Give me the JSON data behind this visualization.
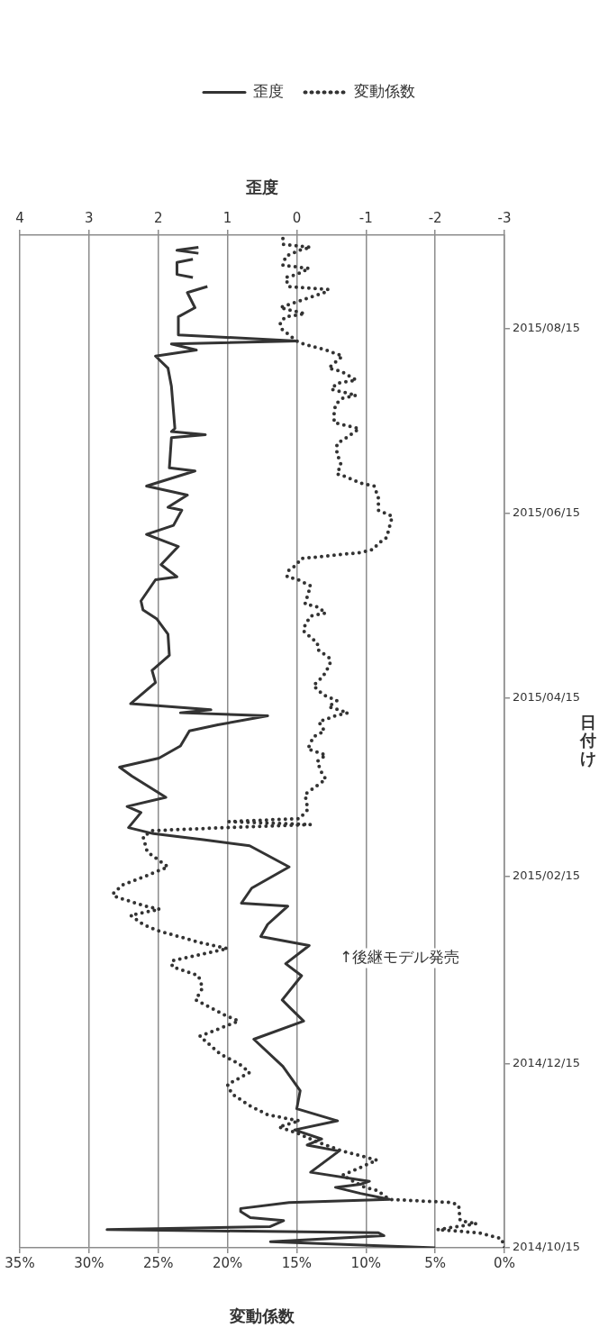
{
  "chart_data": {
    "type": "line",
    "orientation": "horizontal",
    "ylabel": "日付け",
    "xlabel": "変動係数",
    "x2label": "歪度",
    "legend": "top",
    "grid": "x",
    "ylim": [
      "2014-10-15",
      "2015-09-15"
    ],
    "yticks": [
      {
        "value": "2014-10-15",
        "label": "2014/10/15"
      },
      {
        "value": "2014-12-15",
        "label": "2014/12/15"
      },
      {
        "value": "2015-02-15",
        "label": "2015/02/15"
      },
      {
        "value": "2015-04-15",
        "label": "2015/04/15"
      },
      {
        "value": "2015-06-15",
        "label": "2015/06/15"
      },
      {
        "value": "2015-08-15",
        "label": "2015/08/15"
      }
    ],
    "xlim": [
      35,
      0
    ],
    "xticks": [
      {
        "value": 0,
        "label": "0%"
      },
      {
        "value": 5,
        "label": "5%"
      },
      {
        "value": 10,
        "label": "10%"
      },
      {
        "value": 15,
        "label": "15%"
      },
      {
        "value": 20,
        "label": "20%"
      },
      {
        "value": 25,
        "label": "25%"
      },
      {
        "value": 30,
        "label": "30%"
      },
      {
        "value": 35,
        "label": "35%"
      }
    ],
    "x2lim": [
      4,
      -3
    ],
    "x2ticks": [
      -3,
      -2,
      -1,
      0,
      1,
      2,
      3,
      4
    ],
    "annotations": [
      "↑後継モデル発売"
    ],
    "series": [
      {
        "name": "歪度",
        "axis": "x2",
        "color": "#333333",
        "line_style": "solid",
        "x": [
          "2014-10-15",
          "2014-10-17",
          "2014-10-19",
          "2014-10-20",
          "2014-10-21",
          "2014-10-22",
          "2014-10-24",
          "2014-10-25",
          "2014-10-27",
          "2014-10-28",
          "2014-10-30",
          "2014-10-31",
          "2014-11-02",
          "2014-11-04",
          "2014-11-05",
          "2014-11-06",
          "2014-11-09",
          "2014-11-16",
          "2014-11-18",
          "2014-11-20",
          "2014-11-23",
          "2014-11-26",
          "2014-11-30",
          "2014-12-06",
          "2014-12-14",
          "2014-12-23",
          "2014-12-29",
          "2015-01-02",
          "2015-01-05",
          "2015-01-13",
          "2015-01-17",
          "2015-01-23",
          "2015-01-26",
          "2015-01-30",
          "2015-02-05",
          "2015-02-06",
          "2015-02-11",
          "2015-02-18",
          "2015-02-25",
          "2015-02-27",
          "2015-03-01",
          "2015-03-03",
          "2015-03-08",
          "2015-03-10",
          "2015-03-13",
          "2015-03-20",
          "2015-03-23",
          "2015-03-26",
          "2015-03-30",
          "2015-04-04",
          "2015-04-06",
          "2015-04-09",
          "2015-04-10",
          "2015-04-11",
          "2015-04-13",
          "2015-04-20",
          "2015-04-24",
          "2015-04-29",
          "2015-05-06",
          "2015-05-11",
          "2015-05-14",
          "2015-05-17",
          "2015-05-24",
          "2015-05-25",
          "2015-05-29",
          "2015-06-04",
          "2015-06-08",
          "2015-06-11",
          "2015-06-16",
          "2015-06-17",
          "2015-06-21",
          "2015-06-24",
          "2015-06-29",
          "2015-06-30",
          "2015-07-10",
          "2015-07-11",
          "2015-07-12",
          "2015-07-13",
          "2015-07-27",
          "2015-08-02",
          "2015-08-06",
          "2015-08-08",
          "2015-08-10",
          "2015-08-11",
          "2015-08-13",
          "2015-08-19",
          "2015-08-22",
          "2015-08-27",
          "2015-08-29",
          "2015-08-30",
          "2015-09-01",
          "2015-09-02",
          "2015-09-06",
          "2015-09-07",
          "2015-09-08",
          "2015-09-09",
          "2015-09-10",
          "2015-09-11"
        ],
        "values": [
          -2.0,
          0.38,
          -1.26,
          -1.18,
          2.74,
          0.39,
          0.19,
          0.67,
          0.81,
          0.81,
          0.11,
          -1.34,
          -0.92,
          -0.56,
          -0.92,
          -1.05,
          -0.2,
          -0.61,
          -0.15,
          -0.36,
          0.03,
          -0.59,
          0.0,
          -0.05,
          0.2,
          0.62,
          -0.1,
          0.08,
          0.21,
          -0.07,
          0.16,
          -0.18,
          0.52,
          0.42,
          0.13,
          0.8,
          0.65,
          0.11,
          0.68,
          1.35,
          2.07,
          2.43,
          2.25,
          2.45,
          1.89,
          2.38,
          2.56,
          1.99,
          1.68,
          1.55,
          1.14,
          0.42,
          1.68,
          1.24,
          2.4,
          2.04,
          2.09,
          1.84,
          1.86,
          2.02,
          2.22,
          2.25,
          2.04,
          1.73,
          1.96,
          1.71,
          2.17,
          1.78,
          1.66,
          1.86,
          1.58,
          2.17,
          1.47,
          1.84,
          1.81,
          1.32,
          1.81,
          1.76,
          1.81,
          1.86,
          2.04,
          1.45,
          1.81,
          0.0,
          1.71,
          1.71,
          1.47,
          1.58,
          1.29,
          null,
          1.5,
          1.73,
          1.73,
          1.5,
          null,
          1.42,
          1.73,
          1.42
        ]
      },
      {
        "name": "変動係数",
        "color": "#333333",
        "line_style": "dotted",
        "x": [
          "2014-10-15",
          "2014-10-18",
          "2014-10-20",
          "2014-10-21",
          "2014-10-23",
          "2014-10-24",
          "2014-10-29",
          "2014-10-30",
          "2014-10-31",
          "2014-11-03",
          "2014-11-04",
          "2014-11-08",
          "2014-11-13",
          "2014-11-16",
          "2014-11-19",
          "2014-11-22",
          "2014-11-24",
          "2014-11-26",
          "2014-11-28",
          "2014-12-01",
          "2014-12-05",
          "2014-12-08",
          "2014-12-12",
          "2014-12-15",
          "2014-12-18",
          "2014-12-24",
          "2014-12-29",
          "2014-12-31",
          "2015-01-05",
          "2015-01-09",
          "2015-01-13",
          "2015-01-16",
          "2015-01-18",
          "2015-01-22",
          "2015-01-24",
          "2015-01-28",
          "2015-01-30",
          "2015-02-02",
          "2015-02-04",
          "2015-02-05",
          "2015-02-08",
          "2015-02-09",
          "2015-02-12",
          "2015-02-15",
          "2015-02-18",
          "2015-02-21",
          "2015-02-23",
          "2015-02-28",
          "2015-03-02",
          "2015-03-03",
          "2015-03-04",
          "2015-03-05",
          "2015-03-06",
          "2015-03-09",
          "2015-03-14",
          "2015-03-16",
          "2015-03-19",
          "2015-03-22",
          "2015-03-25",
          "2015-03-27",
          "2015-03-29",
          "2015-04-02",
          "2015-04-04",
          "2015-04-07",
          "2015-04-09",
          "2015-04-10",
          "2015-04-12",
          "2015-04-14",
          "2015-04-16",
          "2015-04-19",
          "2015-04-22",
          "2015-04-26",
          "2015-04-28",
          "2015-05-01",
          "2015-05-03",
          "2015-05-07",
          "2015-05-09",
          "2015-05-12",
          "2015-05-13",
          "2015-05-15",
          "2015-05-16",
          "2015-05-22",
          "2015-05-24",
          "2015-05-25",
          "2015-05-27",
          "2015-05-29",
          "2015-05-31",
          "2015-06-02",
          "2015-06-03",
          "2015-06-05",
          "2015-06-07",
          "2015-06-14",
          "2015-06-15",
          "2015-06-16",
          "2015-06-20",
          "2015-06-24",
          "2015-06-25",
          "2015-06-27",
          "2015-06-28",
          "2015-07-01",
          "2015-07-05",
          "2015-07-08",
          "2015-07-10",
          "2015-07-13",
          "2015-07-14",
          "2015-07-15",
          "2015-07-18",
          "2015-07-21",
          "2015-07-23",
          "2015-07-24",
          "2015-07-26",
          "2015-07-28",
          "2015-07-29",
          "2015-08-01",
          "2015-08-02",
          "2015-08-06",
          "2015-08-08",
          "2015-08-10",
          "2015-08-11",
          "2015-08-15",
          "2015-08-17",
          "2015-08-19",
          "2015-08-20",
          "2015-08-22",
          "2015-08-23",
          "2015-08-25",
          "2015-08-27",
          "2015-08-28",
          "2015-08-29",
          "2015-09-01",
          "2015-09-02",
          "2015-09-04",
          "2015-09-05",
          "2015-09-08",
          "2015-09-10",
          "2015-09-11",
          "2015-09-12",
          "2015-09-14"
        ],
        "values": [
          0.0,
          0.2,
          1.9,
          4.85,
          2.0,
          3.2,
          3.3,
          3.8,
          8.3,
          9.2,
          10.1,
          11.7,
          9.2,
          11.7,
          13.5,
          15.0,
          16.3,
          14.8,
          17.1,
          18.4,
          19.7,
          20.0,
          18.4,
          19.2,
          20.5,
          22.0,
          19.2,
          20.2,
          22.3,
          21.8,
          22.1,
          24.0,
          24.0,
          20.0,
          22.0,
          25.1,
          26.1,
          27.0,
          24.9,
          25.9,
          28.0,
          28.3,
          27.6,
          25.9,
          24.3,
          25.2,
          25.8,
          26.1,
          25.4,
          20.2,
          14.0,
          19.9,
          14.8,
          14.2,
          14.4,
          13.8,
          12.9,
          13.3,
          13.5,
          12.9,
          14.2,
          13.8,
          13.0,
          13.4,
          12.2,
          11.3,
          12.7,
          12.1,
          13.1,
          13.8,
          13.1,
          12.6,
          12.6,
          13.5,
          13.5,
          14.5,
          14.4,
          14.0,
          12.9,
          13.5,
          14.4,
          14.0,
          14.9,
          15.7,
          15.6,
          15.0,
          14.7,
          10.4,
          9.5,
          9.1,
          8.5,
          8.1,
          8.6,
          9.1,
          9.1,
          9.4,
          10.4,
          11.4,
          12.1,
          11.8,
          12.1,
          12.1,
          11.4,
          10.5,
          11.4,
          12.3,
          12.3,
          12.2,
          11.7,
          10.7,
          12.5,
          12.1,
          10.7,
          11.8,
          12.7,
          11.7,
          12.9,
          14.5,
          15.0,
          16.1,
          16.2,
          15.8,
          14.4,
          16.2,
          15.6,
          14.3,
          13.0,
          12.7,
          15.6,
          15.8,
          15.0,
          14.1,
          16.0,
          15.8,
          14.8,
          14.0,
          16.0,
          16.0
        ]
      }
    ]
  }
}
